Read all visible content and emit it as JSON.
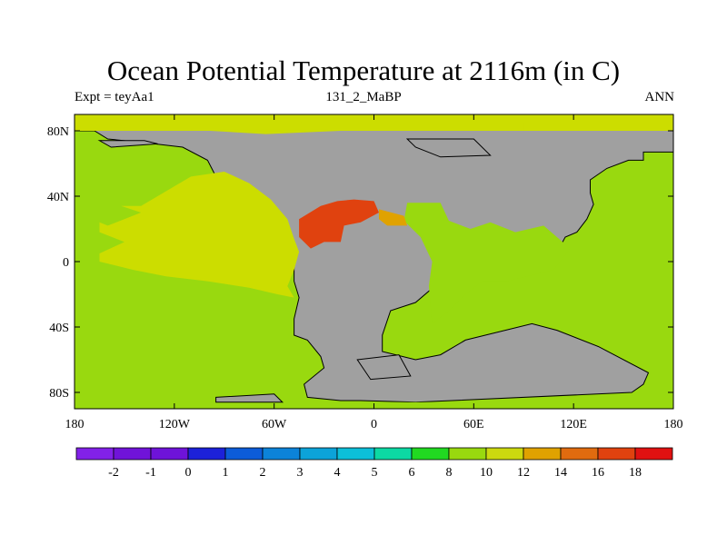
{
  "title": "Ocean Potential Temperature at 2116m (in C)",
  "subtitle_left": "Expt = teyAa1",
  "subtitle_center": "131_2_MaBP",
  "subtitle_right": "ANN",
  "colors": {
    "land": "#a0a0a0",
    "coastline": "#000000"
  },
  "map_axes": {
    "longitude_range": [
      -180,
      180
    ],
    "latitude_range": [
      -90,
      90
    ],
    "x_ticks": [
      {
        "value": -180,
        "label": "180"
      },
      {
        "value": -120,
        "label": "120W"
      },
      {
        "value": -60,
        "label": "60W"
      },
      {
        "value": 0,
        "label": "0"
      },
      {
        "value": 60,
        "label": "60E"
      },
      {
        "value": 120,
        "label": "120E"
      },
      {
        "value": 180,
        "label": "180"
      }
    ],
    "y_ticks": [
      {
        "value": 80,
        "label": "80N"
      },
      {
        "value": 40,
        "label": "40N"
      },
      {
        "value": 0,
        "label": "0"
      },
      {
        "value": -40,
        "label": "40S"
      },
      {
        "value": -80,
        "label": "80S"
      }
    ]
  },
  "regions": [
    {
      "name": "ocean-base",
      "value": 8,
      "color": "#99d90f",
      "points": [
        [
          -180,
          90
        ],
        [
          180,
          90
        ],
        [
          180,
          -90
        ],
        [
          -180,
          -90
        ]
      ]
    },
    {
      "name": "land-main",
      "value": null,
      "color": "#a0a0a0",
      "points": [
        [
          -180,
          90
        ],
        [
          180,
          90
        ],
        [
          180,
          67
        ],
        [
          162,
          67
        ],
        [
          162,
          62
        ],
        [
          153,
          62
        ],
        [
          140,
          57
        ],
        [
          130,
          50
        ],
        [
          130,
          42
        ],
        [
          132,
          35
        ],
        [
          128,
          26
        ],
        [
          122,
          18
        ],
        [
          115,
          15
        ],
        [
          107,
          0
        ],
        [
          100,
          0
        ],
        [
          75,
          -2
        ],
        [
          55,
          -5
        ],
        [
          40,
          -12
        ],
        [
          25,
          -25
        ],
        [
          10,
          -30
        ],
        [
          5,
          -45
        ],
        [
          5,
          -55
        ],
        [
          25,
          -60
        ],
        [
          40,
          -57
        ],
        [
          55,
          -48
        ],
        [
          95,
          -38
        ],
        [
          110,
          -42
        ],
        [
          135,
          -52
        ],
        [
          165,
          -68
        ],
        [
          162,
          -75
        ],
        [
          155,
          -80
        ],
        [
          25,
          -86
        ],
        [
          -8,
          -85
        ],
        [
          -20,
          -85
        ],
        [
          -40,
          -83
        ],
        [
          -42,
          -75
        ],
        [
          -30,
          -65
        ],
        [
          -32,
          -58
        ],
        [
          -40,
          -48
        ],
        [
          -48,
          -45
        ],
        [
          -48,
          -35
        ],
        [
          -45,
          -22
        ],
        [
          -48,
          -12
        ],
        [
          -48,
          0
        ],
        [
          -55,
          5
        ],
        [
          -55,
          12
        ],
        [
          -58,
          18
        ],
        [
          -70,
          22
        ],
        [
          -80,
          32
        ],
        [
          -85,
          40
        ],
        [
          -95,
          52
        ],
        [
          -100,
          62
        ],
        [
          -115,
          70
        ],
        [
          -140,
          73
        ],
        [
          -160,
          75
        ],
        [
          -168,
          80
        ],
        [
          -180,
          80
        ]
      ]
    },
    {
      "name": "antarctic-strip",
      "value": 8,
      "color": "#99d90f",
      "points": [
        [
          -180,
          -86
        ],
        [
          180,
          -86
        ],
        [
          180,
          -90
        ],
        [
          -180,
          -90
        ]
      ]
    },
    {
      "name": "inland-sea-east",
      "value": 8,
      "color": "#99d90f",
      "points": [
        [
          20,
          36
        ],
        [
          40,
          36
        ],
        [
          45,
          25
        ],
        [
          58,
          20
        ],
        [
          70,
          24
        ],
        [
          85,
          18
        ],
        [
          102,
          22
        ],
        [
          118,
          8
        ],
        [
          108,
          -5
        ],
        [
          80,
          -12
        ],
        [
          65,
          -12
        ],
        [
          55,
          -20
        ],
        [
          45,
          -30
        ],
        [
          35,
          -38
        ],
        [
          33,
          -15
        ],
        [
          35,
          0
        ],
        [
          28,
          15
        ],
        [
          18,
          25
        ]
      ]
    },
    {
      "name": "north-pacific-warm",
      "value": 10,
      "color": "#ccdd00",
      "points": [
        [
          -180,
          90
        ],
        [
          180,
          90
        ],
        [
          180,
          80
        ],
        [
          -180,
          80
        ]
      ]
    },
    {
      "name": "atlantic-tongue",
      "value": 10,
      "color": "#ccdd00",
      "points": [
        [
          -140,
          34
        ],
        [
          -110,
          52
        ],
        [
          -90,
          55
        ],
        [
          -75,
          48
        ],
        [
          -62,
          38
        ],
        [
          -52,
          26
        ],
        [
          -48,
          14
        ],
        [
          -45,
          6
        ],
        [
          -48,
          -5
        ],
        [
          -52,
          -15
        ],
        [
          -48,
          -22
        ],
        [
          -58,
          -20
        ],
        [
          -75,
          -16
        ],
        [
          -100,
          -12
        ],
        [
          -125,
          -9
        ],
        [
          -145,
          -5
        ],
        [
          -165,
          0
        ],
        [
          -165,
          5
        ],
        [
          -150,
          12
        ],
        [
          -165,
          18
        ],
        [
          -165,
          24
        ],
        [
          -160,
          22
        ],
        [
          -140,
          30
        ],
        [
          -152,
          34
        ]
      ]
    },
    {
      "name": "arctic-band",
      "value": 10,
      "color": "#ccdd00",
      "points": [
        [
          -120,
          87
        ],
        [
          -65,
          87
        ],
        [
          -40,
          85
        ],
        [
          45,
          85
        ],
        [
          90,
          85
        ],
        [
          90,
          80
        ],
        [
          45,
          80
        ],
        [
          -20,
          80
        ],
        [
          -65,
          78
        ],
        [
          -115,
          81
        ]
      ]
    },
    {
      "name": "tethys-warm-pool",
      "value": 16,
      "color": "#e0420f",
      "points": [
        [
          -45,
          26
        ],
        [
          -32,
          34
        ],
        [
          -22,
          37
        ],
        [
          -12,
          38
        ],
        [
          0,
          37
        ],
        [
          3,
          30
        ],
        [
          -8,
          24
        ],
        [
          -18,
          22
        ],
        [
          -20,
          12
        ],
        [
          -30,
          12
        ],
        [
          -38,
          8
        ],
        [
          -45,
          15
        ]
      ]
    },
    {
      "name": "tethys-edge",
      "value": 14,
      "color": "#e0a200",
      "points": [
        [
          3,
          32
        ],
        [
          18,
          28
        ],
        [
          20,
          22
        ],
        [
          8,
          22
        ],
        [
          3,
          26
        ]
      ]
    }
  ],
  "islands": [
    {
      "points": [
        [
          -165,
          74
        ],
        [
          -138,
          74
        ],
        [
          -130,
          72
        ],
        [
          -158,
          70
        ]
      ]
    },
    {
      "points": [
        [
          20,
          75
        ],
        [
          60,
          75
        ],
        [
          70,
          65
        ],
        [
          40,
          64
        ],
        [
          25,
          70
        ]
      ]
    },
    {
      "points": [
        [
          -10,
          -60
        ],
        [
          15,
          -57
        ],
        [
          22,
          -70
        ],
        [
          -2,
          -72
        ]
      ]
    },
    {
      "points": [
        [
          -95,
          -83
        ],
        [
          -60,
          -81
        ],
        [
          -55,
          -86
        ],
        [
          -95,
          -86
        ]
      ]
    }
  ],
  "colorbar": {
    "labels": [
      "-2",
      "-1",
      "0",
      "1",
      "2",
      "3",
      "4",
      "5",
      "6",
      "8",
      "10",
      "12",
      "14",
      "16",
      "18"
    ],
    "colors": [
      "#8221e8",
      "#7013d9",
      "#6e13d9",
      "#1c21d9",
      "#0c5cd9",
      "#0c83d9",
      "#0ca3d9",
      "#0cbfd9",
      "#0cd9a3",
      "#21d921",
      "#99d90f",
      "#ccd90f",
      "#e0a200",
      "#e06b0f",
      "#e0420f",
      "#e01111"
    ]
  }
}
